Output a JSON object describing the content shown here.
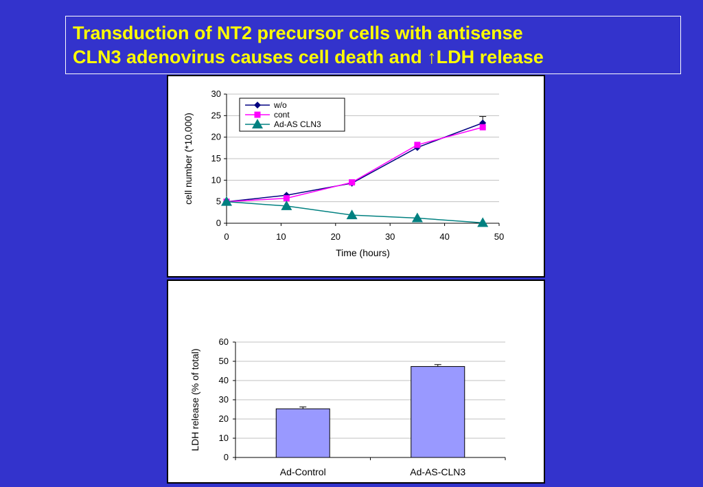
{
  "slide": {
    "title_line1": "Transduction of NT2 precursor cells with antisense",
    "title_line2": "CLN3 adenovirus causes cell death and ↑LDH release",
    "background_color": "#3333cc",
    "title_color": "#ffff00"
  },
  "chart_data": [
    {
      "type": "line",
      "title": "",
      "xlabel": "Time (hours)",
      "ylabel": "cell number (*10,000)",
      "xlim": [
        0,
        50
      ],
      "ylim": [
        0,
        30
      ],
      "xticks": [
        0,
        10,
        20,
        30,
        40,
        50
      ],
      "yticks": [
        0,
        5,
        10,
        15,
        20,
        25,
        30
      ],
      "grid": "horizontal",
      "legend_position": "top-left",
      "series": [
        {
          "name": "w/o",
          "color": "#000080",
          "marker": "diamond",
          "x": [
            0,
            11,
            23,
            35,
            47
          ],
          "y": [
            5,
            6.5,
            9.3,
            17.6,
            23.3
          ],
          "error": [
            0,
            0,
            0,
            0,
            1.5
          ]
        },
        {
          "name": "cont",
          "color": "#ff00ff",
          "marker": "square",
          "x": [
            0,
            11,
            23,
            35,
            47
          ],
          "y": [
            5,
            5.8,
            9.5,
            18.2,
            22.3
          ],
          "error": [
            0,
            0,
            0,
            0,
            0
          ]
        },
        {
          "name": "Ad-AS CLN3",
          "color": "#008080",
          "marker": "triangle",
          "x": [
            0,
            11,
            23,
            35,
            47
          ],
          "y": [
            5,
            4,
            1.9,
            1.2,
            0.1
          ],
          "error": [
            0,
            0,
            0,
            0,
            0
          ]
        }
      ]
    },
    {
      "type": "bar",
      "title": "",
      "xlabel": "",
      "ylabel": "LDH release (% of total)",
      "categories": [
        "Ad-Control",
        "Ad-AS-CLN3"
      ],
      "values": [
        25.3,
        47.3
      ],
      "errors": [
        1.0,
        1.0
      ],
      "ylim": [
        0,
        60
      ],
      "yticks": [
        0,
        10,
        20,
        30,
        40,
        50,
        60
      ],
      "grid": "horizontal",
      "bar_color": "#9999ff"
    }
  ]
}
